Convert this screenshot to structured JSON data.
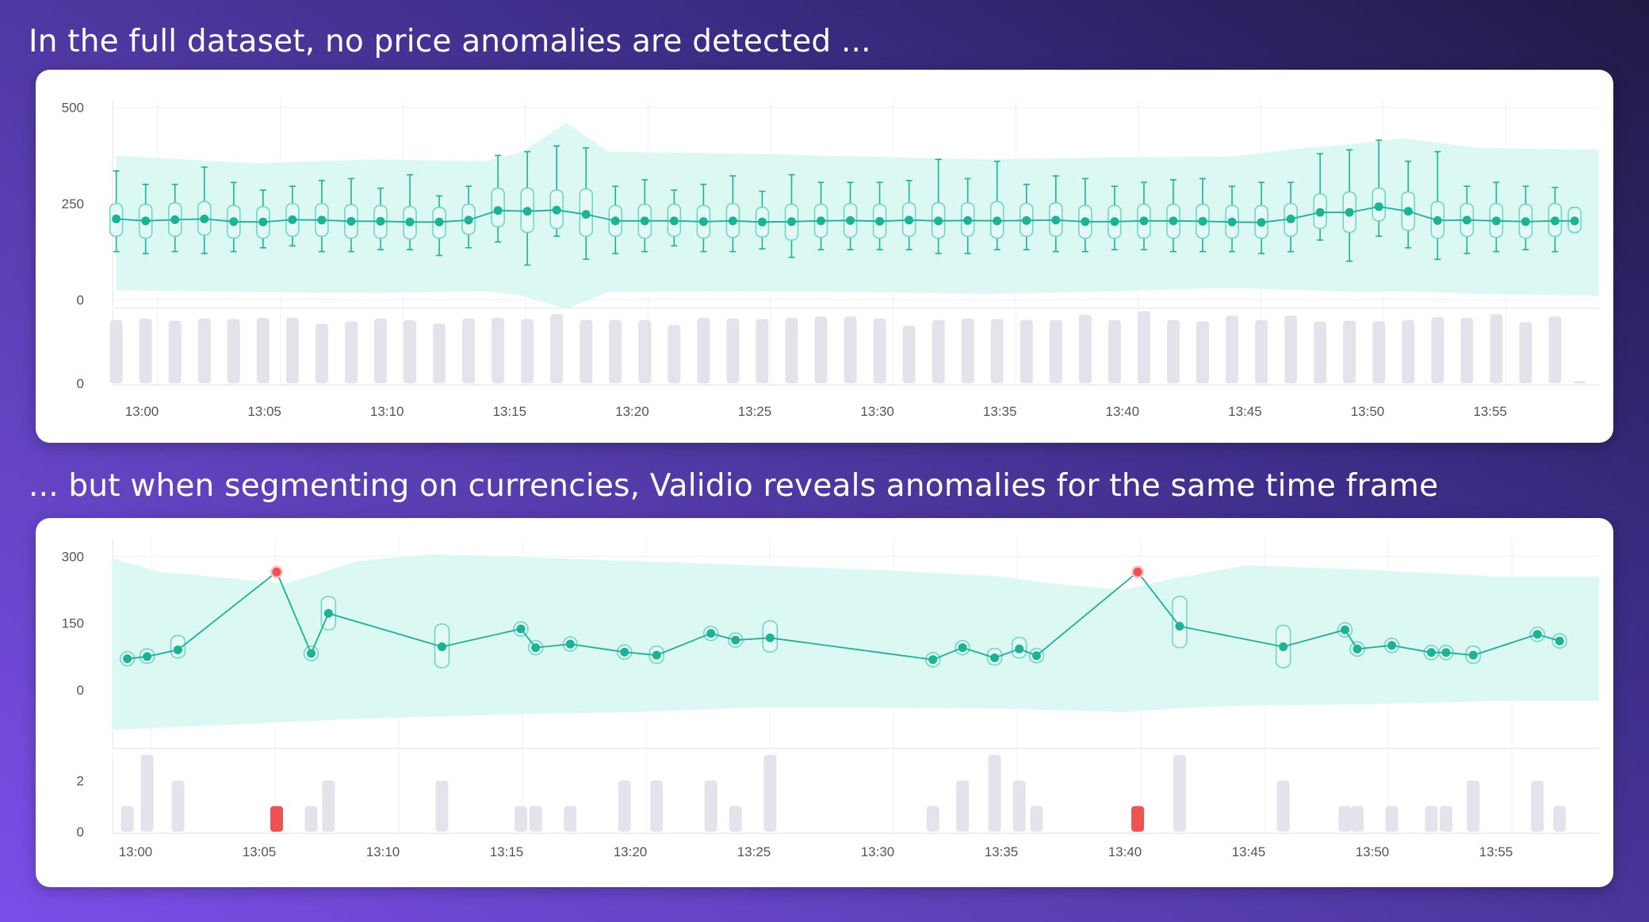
{
  "headings": {
    "top": "In the full dataset, no price anomalies are detected ...",
    "bottom": "... but when segmenting on currencies, Validio reveals anomalies for the same time frame"
  },
  "colors": {
    "accent": "#1ab394",
    "band": "#dcf8f3",
    "box_fill": "#e4f9f5",
    "box_stroke": "#6fd8c3",
    "volume_bar": "#e4e3ec",
    "anomaly": "#ee5253",
    "grid": "#f0f0f4"
  },
  "chart_data": [
    {
      "type": "box-line",
      "title": "",
      "y_tick_labels": [
        "500",
        "250",
        "0"
      ],
      "y_ticks": [
        500,
        250,
        0
      ],
      "ylim": [
        -20,
        520
      ],
      "x_tick_labels": [
        "13:00",
        "13:05",
        "13:10",
        "13:15",
        "13:20",
        "13:25",
        "13:30",
        "13:35",
        "13:40",
        "13:45",
        "13:50",
        "13:55"
      ],
      "x_range_minutes": [
        -0.75,
        60
      ],
      "grid": true,
      "band": {
        "x": [
          -0.6,
          5,
          10,
          14.5,
          16,
          17.8,
          19.5,
          25,
          30,
          35,
          40,
          45,
          48,
          50,
          52,
          55,
          60
        ],
        "upper": [
          375,
          355,
          365,
          360,
          385,
          460,
          385,
          380,
          372,
          365,
          370,
          372,
          395,
          405,
          420,
          395,
          390
        ],
        "lower": [
          25,
          20,
          18,
          22,
          10,
          -25,
          20,
          22,
          20,
          15,
          22,
          30,
          25,
          20,
          22,
          15,
          10
        ]
      },
      "points": [
        {
          "x": -0.6,
          "median": 210,
          "q1": 165,
          "q3": 250,
          "low": 125,
          "high": 335
        },
        {
          "x": 0.6,
          "median": 205,
          "q1": 160,
          "q3": 248,
          "low": 120,
          "high": 300
        },
        {
          "x": 1.8,
          "median": 208,
          "q1": 165,
          "q3": 252,
          "low": 125,
          "high": 300
        },
        {
          "x": 3.0,
          "median": 210,
          "q1": 168,
          "q3": 255,
          "low": 120,
          "high": 345
        },
        {
          "x": 4.2,
          "median": 203,
          "q1": 160,
          "q3": 245,
          "low": 125,
          "high": 305
        },
        {
          "x": 5.4,
          "median": 202,
          "q1": 160,
          "q3": 242,
          "low": 135,
          "high": 285
        },
        {
          "x": 6.6,
          "median": 208,
          "q1": 165,
          "q3": 250,
          "low": 140,
          "high": 295
        },
        {
          "x": 7.8,
          "median": 207,
          "q1": 165,
          "q3": 250,
          "low": 125,
          "high": 310
        },
        {
          "x": 9.0,
          "median": 204,
          "q1": 160,
          "q3": 247,
          "low": 125,
          "high": 315
        },
        {
          "x": 10.2,
          "median": 204,
          "q1": 160,
          "q3": 245,
          "low": 130,
          "high": 290
        },
        {
          "x": 11.4,
          "median": 202,
          "q1": 158,
          "q3": 242,
          "low": 130,
          "high": 325
        },
        {
          "x": 12.6,
          "median": 202,
          "q1": 160,
          "q3": 240,
          "low": 115,
          "high": 270
        },
        {
          "x": 13.8,
          "median": 207,
          "q1": 170,
          "q3": 248,
          "low": 135,
          "high": 295
        },
        {
          "x": 15.0,
          "median": 232,
          "q1": 190,
          "q3": 290,
          "low": 150,
          "high": 375
        },
        {
          "x": 16.2,
          "median": 230,
          "q1": 175,
          "q3": 290,
          "low": 90,
          "high": 385
        },
        {
          "x": 17.4,
          "median": 233,
          "q1": 185,
          "q3": 285,
          "low": 165,
          "high": 400
        },
        {
          "x": 18.6,
          "median": 222,
          "q1": 165,
          "q3": 288,
          "low": 105,
          "high": 395
        },
        {
          "x": 19.8,
          "median": 205,
          "q1": 165,
          "q3": 245,
          "low": 120,
          "high": 295
        },
        {
          "x": 21.0,
          "median": 205,
          "q1": 160,
          "q3": 248,
          "low": 125,
          "high": 312
        },
        {
          "x": 22.2,
          "median": 205,
          "q1": 165,
          "q3": 248,
          "low": 140,
          "high": 285
        },
        {
          "x": 23.4,
          "median": 203,
          "q1": 160,
          "q3": 245,
          "low": 125,
          "high": 300
        },
        {
          "x": 24.6,
          "median": 205,
          "q1": 162,
          "q3": 250,
          "low": 125,
          "high": 322
        },
        {
          "x": 25.8,
          "median": 202,
          "q1": 163,
          "q3": 240,
          "low": 132,
          "high": 282
        },
        {
          "x": 27.0,
          "median": 203,
          "q1": 155,
          "q3": 248,
          "low": 110,
          "high": 325
        },
        {
          "x": 28.2,
          "median": 205,
          "q1": 162,
          "q3": 248,
          "low": 130,
          "high": 305
        },
        {
          "x": 29.4,
          "median": 206,
          "q1": 162,
          "q3": 250,
          "low": 130,
          "high": 305
        },
        {
          "x": 30.6,
          "median": 204,
          "q1": 160,
          "q3": 248,
          "low": 130,
          "high": 305
        },
        {
          "x": 31.8,
          "median": 207,
          "q1": 165,
          "q3": 252,
          "low": 130,
          "high": 310
        },
        {
          "x": 33.0,
          "median": 205,
          "q1": 160,
          "q3": 252,
          "low": 120,
          "high": 365
        },
        {
          "x": 34.2,
          "median": 206,
          "q1": 165,
          "q3": 252,
          "low": 120,
          "high": 315
        },
        {
          "x": 35.4,
          "median": 205,
          "q1": 160,
          "q3": 255,
          "low": 130,
          "high": 360
        },
        {
          "x": 36.6,
          "median": 206,
          "q1": 165,
          "q3": 250,
          "low": 130,
          "high": 300
        },
        {
          "x": 37.8,
          "median": 207,
          "q1": 165,
          "q3": 252,
          "low": 125,
          "high": 322
        },
        {
          "x": 39.0,
          "median": 203,
          "q1": 160,
          "q3": 245,
          "low": 125,
          "high": 315
        },
        {
          "x": 40.2,
          "median": 203,
          "q1": 160,
          "q3": 245,
          "low": 130,
          "high": 295
        },
        {
          "x": 41.4,
          "median": 205,
          "q1": 160,
          "q3": 248,
          "low": 130,
          "high": 305
        },
        {
          "x": 42.6,
          "median": 205,
          "q1": 160,
          "q3": 248,
          "low": 125,
          "high": 312
        },
        {
          "x": 43.8,
          "median": 204,
          "q1": 160,
          "q3": 248,
          "low": 125,
          "high": 315
        },
        {
          "x": 45.0,
          "median": 202,
          "q1": 160,
          "q3": 245,
          "low": 125,
          "high": 295
        },
        {
          "x": 46.2,
          "median": 201,
          "q1": 160,
          "q3": 245,
          "low": 120,
          "high": 305
        },
        {
          "x": 47.4,
          "median": 210,
          "q1": 165,
          "q3": 250,
          "low": 125,
          "high": 305
        },
        {
          "x": 48.6,
          "median": 227,
          "q1": 185,
          "q3": 275,
          "low": 155,
          "high": 380
        },
        {
          "x": 49.8,
          "median": 227,
          "q1": 175,
          "q3": 280,
          "low": 100,
          "high": 390
        },
        {
          "x": 51.0,
          "median": 242,
          "q1": 205,
          "q3": 290,
          "low": 165,
          "high": 415
        },
        {
          "x": 52.2,
          "median": 230,
          "q1": 180,
          "q3": 280,
          "low": 135,
          "high": 360
        },
        {
          "x": 53.4,
          "median": 206,
          "q1": 160,
          "q3": 255,
          "low": 105,
          "high": 385
        },
        {
          "x": 54.6,
          "median": 207,
          "q1": 165,
          "q3": 250,
          "low": 120,
          "high": 295
        },
        {
          "x": 55.8,
          "median": 205,
          "q1": 162,
          "q3": 250,
          "low": 125,
          "high": 305
        },
        {
          "x": 57.0,
          "median": 203,
          "q1": 160,
          "q3": 248,
          "low": 130,
          "high": 295
        },
        {
          "x": 58.2,
          "median": 205,
          "q1": 165,
          "q3": 250,
          "low": 125,
          "high": 292
        },
        {
          "x": 59.0,
          "median": 205,
          "q1": 175,
          "q3": 240,
          "low": 175,
          "high": 240
        }
      ],
      "volume": {
        "x": [
          -0.6,
          0.6,
          1.8,
          3.0,
          4.2,
          5.4,
          6.6,
          7.8,
          9.0,
          10.2,
          11.4,
          12.6,
          13.8,
          15.0,
          16.2,
          17.4,
          18.6,
          19.8,
          21.0,
          22.2,
          23.4,
          24.6,
          25.8,
          27.0,
          28.2,
          29.4,
          30.6,
          31.8,
          33.0,
          34.2,
          35.4,
          36.6,
          37.8,
          39.0,
          40.2,
          41.4,
          42.6,
          43.8,
          45.0,
          46.2,
          47.4,
          48.6,
          49.8,
          51.0,
          52.2,
          53.4,
          54.6,
          55.8,
          57.0,
          58.2,
          59.2
        ],
        "values": [
          0.88,
          0.9,
          0.87,
          0.9,
          0.89,
          0.91,
          0.91,
          0.83,
          0.86,
          0.9,
          0.88,
          0.83,
          0.9,
          0.91,
          0.89,
          0.96,
          0.88,
          0.88,
          0.88,
          0.81,
          0.91,
          0.9,
          0.89,
          0.91,
          0.93,
          0.93,
          0.9,
          0.8,
          0.88,
          0.9,
          0.89,
          0.88,
          0.88,
          0.95,
          0.88,
          1.0,
          0.88,
          0.86,
          0.94,
          0.88,
          0.94,
          0.86,
          0.87,
          0.86,
          0.88,
          0.92,
          0.91,
          0.96,
          0.85,
          0.93,
          0.03
        ],
        "y_tick_labels": [
          "0"
        ]
      }
    },
    {
      "type": "box-line",
      "title": "",
      "y_tick_labels": [
        "300",
        "150",
        "0"
      ],
      "y_ticks": [
        300,
        150,
        0
      ],
      "ylim": [
        -130,
        340
      ],
      "x_tick_labels": [
        "13:00",
        "13:05",
        "13:10",
        "13:15",
        "13:20",
        "13:25",
        "13:30",
        "13:35",
        "13:40",
        "13:45",
        "13:50",
        "13:55"
      ],
      "x_range_minutes": [
        -0.95,
        59.3
      ],
      "grid": true,
      "band": {
        "x": [
          -0.95,
          1,
          3,
          5,
          6,
          7,
          9,
          12,
          15,
          20,
          25,
          30,
          35,
          37,
          40,
          42,
          45,
          50,
          55,
          59.3
        ],
        "upper": [
          295,
          265,
          255,
          245,
          238,
          255,
          290,
          305,
          300,
          290,
          280,
          270,
          255,
          240,
          225,
          250,
          280,
          270,
          255,
          255
        ],
        "lower": [
          -90,
          -85,
          -80,
          -75,
          -72,
          -70,
          -65,
          -60,
          -55,
          -50,
          -40,
          -40,
          -42,
          -45,
          -50,
          -42,
          -35,
          -32,
          -25,
          -25
        ]
      },
      "points": [
        {
          "x": -0.35,
          "median": 70,
          "q1": 70,
          "q3": 70
        },
        {
          "x": 0.45,
          "median": 75,
          "q1": 60,
          "q3": 92
        },
        {
          "x": 1.7,
          "median": 90,
          "q1": 72,
          "q3": 122
        },
        {
          "x": 5.7,
          "median": 265,
          "q1": 265,
          "q3": 265,
          "anomaly": true
        },
        {
          "x": 7.1,
          "median": 82,
          "q1": 82,
          "q3": 82
        },
        {
          "x": 7.8,
          "median": 172,
          "q1": 135,
          "q3": 210
        },
        {
          "x": 12.4,
          "median": 97,
          "q1": 50,
          "q3": 148
        },
        {
          "x": 15.6,
          "median": 137,
          "q1": 137,
          "q3": 137
        },
        {
          "x": 16.2,
          "median": 95,
          "q1": 95,
          "q3": 95
        },
        {
          "x": 17.6,
          "median": 103,
          "q1": 103,
          "q3": 103
        },
        {
          "x": 19.8,
          "median": 85,
          "q1": 85,
          "q3": 85
        },
        {
          "x": 21.1,
          "median": 78,
          "q1": 60,
          "q3": 98
        },
        {
          "x": 23.3,
          "median": 127,
          "q1": 127,
          "q3": 127
        },
        {
          "x": 24.3,
          "median": 112,
          "q1": 112,
          "q3": 112
        },
        {
          "x": 25.7,
          "median": 117,
          "q1": 85,
          "q3": 155
        },
        {
          "x": 32.3,
          "median": 68,
          "q1": 68,
          "q3": 68
        },
        {
          "x": 33.5,
          "median": 95,
          "q1": 95,
          "q3": 95
        },
        {
          "x": 34.8,
          "median": 72,
          "q1": 56,
          "q3": 93
        },
        {
          "x": 35.8,
          "median": 92,
          "q1": 72,
          "q3": 118
        },
        {
          "x": 36.5,
          "median": 77,
          "q1": 77,
          "q3": 77
        },
        {
          "x": 40.6,
          "median": 265,
          "q1": 265,
          "q3": 265,
          "anomaly": true
        },
        {
          "x": 42.3,
          "median": 143,
          "q1": 95,
          "q3": 210
        },
        {
          "x": 46.5,
          "median": 97,
          "q1": 50,
          "q3": 145
        },
        {
          "x": 49.0,
          "median": 135,
          "q1": 135,
          "q3": 135
        },
        {
          "x": 49.5,
          "median": 92,
          "q1": 92,
          "q3": 92
        },
        {
          "x": 50.9,
          "median": 100,
          "q1": 100,
          "q3": 100
        },
        {
          "x": 52.5,
          "median": 84,
          "q1": 84,
          "q3": 84
        },
        {
          "x": 53.1,
          "median": 84,
          "q1": 84,
          "q3": 84
        },
        {
          "x": 54.2,
          "median": 78,
          "q1": 60,
          "q3": 98
        },
        {
          "x": 56.8,
          "median": 125,
          "q1": 125,
          "q3": 125
        },
        {
          "x": 57.7,
          "median": 110,
          "q1": 110,
          "q3": 110
        }
      ],
      "volume": {
        "x": [
          -0.35,
          0.45,
          1.7,
          5.7,
          7.1,
          7.8,
          12.4,
          15.6,
          16.2,
          17.6,
          19.8,
          21.1,
          23.3,
          24.3,
          25.7,
          32.3,
          33.5,
          34.8,
          35.8,
          36.5,
          40.6,
          42.3,
          46.5,
          49.0,
          49.5,
          50.9,
          52.5,
          53.1,
          54.2,
          56.8,
          57.7
        ],
        "values": [
          1,
          3,
          2,
          1,
          1,
          2,
          2,
          1,
          1,
          1,
          2,
          2,
          2,
          1,
          3,
          1,
          2,
          3,
          2,
          1,
          1,
          3,
          2,
          1,
          1,
          1,
          1,
          1,
          2,
          2,
          1
        ],
        "anomaly_indices": [
          3,
          20
        ],
        "ylim": [
          0,
          3
        ],
        "y_tick_labels": [
          "2",
          "0"
        ],
        "y_ticks": [
          2,
          0
        ]
      }
    }
  ]
}
